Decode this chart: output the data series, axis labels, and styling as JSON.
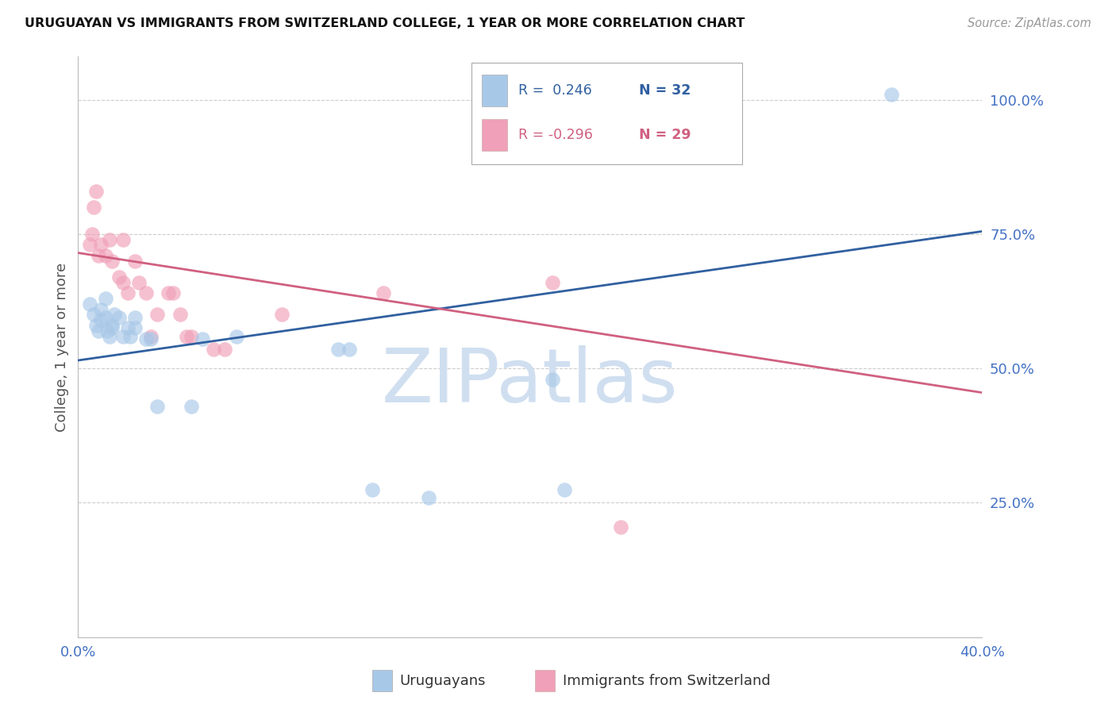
{
  "title": "URUGUAYAN VS IMMIGRANTS FROM SWITZERLAND COLLEGE, 1 YEAR OR MORE CORRELATION CHART",
  "source": "Source: ZipAtlas.com",
  "ylabel": "College, 1 year or more",
  "legend_label_blue": "Uruguayans",
  "legend_label_pink": "Immigrants from Switzerland",
  "legend_r_blue": "R =  0.246",
  "legend_n_blue": "N = 32",
  "legend_r_pink": "R = -0.296",
  "legend_n_pink": "N = 29",
  "x_min": 0.0,
  "x_max": 0.4,
  "y_min": 0.0,
  "y_max": 1.08,
  "x_ticks": [
    0.0,
    0.05,
    0.1,
    0.15,
    0.2,
    0.25,
    0.3,
    0.35,
    0.4
  ],
  "x_tick_labels": [
    "0.0%",
    "",
    "",
    "",
    "",
    "",
    "",
    "",
    "40.0%"
  ],
  "y_ticks": [
    0.0,
    0.25,
    0.5,
    0.75,
    1.0
  ],
  "y_tick_labels": [
    "",
    "25.0%",
    "50.0%",
    "75.0%",
    "100.0%"
  ],
  "color_blue": "#a8c8e8",
  "color_blue_line": "#3060a0",
  "color_pink": "#f0a0b8",
  "color_pink_line": "#d06080",
  "color_grid": "#cccccc",
  "color_axis_labels": "#4472c4",
  "blue_scatter_x": [
    0.005,
    0.007,
    0.008,
    0.009,
    0.01,
    0.01,
    0.012,
    0.012,
    0.013,
    0.014,
    0.015,
    0.015,
    0.016,
    0.018,
    0.02,
    0.022,
    0.023,
    0.025,
    0.025,
    0.03,
    0.032,
    0.035,
    0.05,
    0.055,
    0.07,
    0.115,
    0.12,
    0.13,
    0.155,
    0.21,
    0.215,
    0.36
  ],
  "blue_scatter_y": [
    0.62,
    0.6,
    0.58,
    0.57,
    0.61,
    0.59,
    0.63,
    0.595,
    0.57,
    0.56,
    0.575,
    0.58,
    0.6,
    0.595,
    0.56,
    0.575,
    0.56,
    0.575,
    0.595,
    0.555,
    0.555,
    0.43,
    0.43,
    0.555,
    0.56,
    0.535,
    0.535,
    0.275,
    0.26,
    0.48,
    0.275,
    1.01
  ],
  "pink_scatter_x": [
    0.005,
    0.006,
    0.007,
    0.008,
    0.009,
    0.01,
    0.012,
    0.014,
    0.015,
    0.018,
    0.02,
    0.02,
    0.022,
    0.025,
    0.027,
    0.03,
    0.032,
    0.035,
    0.04,
    0.042,
    0.045,
    0.048,
    0.05,
    0.06,
    0.065,
    0.09,
    0.135,
    0.21,
    0.24
  ],
  "pink_scatter_y": [
    0.73,
    0.75,
    0.8,
    0.83,
    0.71,
    0.73,
    0.71,
    0.74,
    0.7,
    0.67,
    0.74,
    0.66,
    0.64,
    0.7,
    0.66,
    0.64,
    0.56,
    0.6,
    0.64,
    0.64,
    0.6,
    0.56,
    0.56,
    0.535,
    0.535,
    0.6,
    0.64,
    0.66,
    0.205
  ],
  "blue_line_x0": 0.0,
  "blue_line_x1": 0.4,
  "blue_line_y0": 0.515,
  "blue_line_y1": 0.755,
  "pink_line_x0": 0.0,
  "pink_line_x1": 0.4,
  "pink_line_y0": 0.715,
  "pink_line_y1": 0.455,
  "watermark": "ZIPatlas",
  "watermark_color": "#d0dff0",
  "scatter_size": 180,
  "scatter_alpha": 0.65
}
